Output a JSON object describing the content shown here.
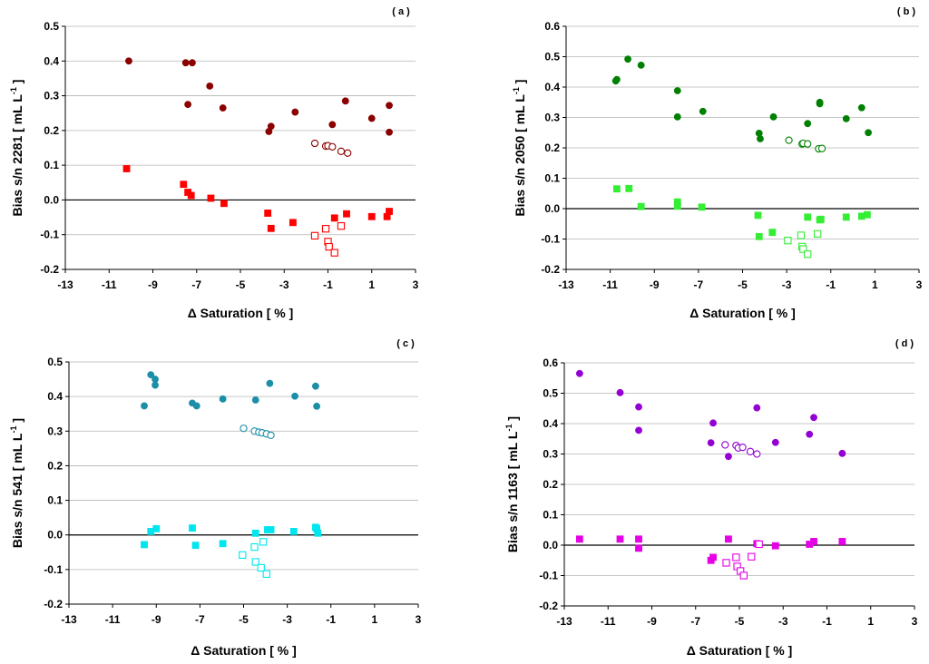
{
  "chart_data": [
    {
      "id": "a",
      "type": "scatter",
      "panel_label": "( a )",
      "xlabel": "Δ Saturation [ % ]",
      "ylabel_main": "Bias s/n 2281 [ mL L",
      "ylabel_sup": "-1",
      "ylabel_end": " ]",
      "xlim": [
        -13,
        3
      ],
      "ylim": [
        -0.2,
        0.5
      ],
      "xticks": [
        -13,
        -11,
        -9,
        -7,
        -5,
        -3,
        -1,
        1,
        3
      ],
      "yticks": [
        -0.2,
        -0.1,
        0.0,
        0.1,
        0.2,
        0.3,
        0.4,
        0.5
      ],
      "ytick_labels": [
        "-0.2",
        "-0.1",
        "0.0",
        "0.1",
        "0.2",
        "0.3",
        "0.4",
        "0.5"
      ],
      "zero_line": true,
      "series": [
        {
          "marker": "circle",
          "filled": true,
          "color": "#8B0000",
          "points": [
            [
              -10.1,
              0.4
            ],
            [
              -7.5,
              0.395
            ],
            [
              -7.2,
              0.395
            ],
            [
              -7.4,
              0.275
            ],
            [
              -6.4,
              0.328
            ],
            [
              -5.8,
              0.265
            ],
            [
              -3.6,
              0.212
            ],
            [
              -3.7,
              0.197
            ],
            [
              -2.5,
              0.253
            ],
            [
              -0.8,
              0.217
            ],
            [
              -0.2,
              0.285
            ],
            [
              1.0,
              0.235
            ],
            [
              1.8,
              0.272
            ],
            [
              1.8,
              0.195
            ]
          ]
        },
        {
          "marker": "circle",
          "filled": false,
          "color": "#8B0000",
          "points": [
            [
              -1.6,
              0.163
            ],
            [
              -1.1,
              0.155
            ],
            [
              -1.0,
              0.156
            ],
            [
              -0.8,
              0.153
            ],
            [
              -0.4,
              0.14
            ],
            [
              -0.1,
              0.135
            ]
          ]
        },
        {
          "marker": "square",
          "filled": true,
          "color": "#FF0000",
          "points": [
            [
              -10.2,
              0.09
            ],
            [
              -7.6,
              0.045
            ],
            [
              -7.4,
              0.022
            ],
            [
              -7.25,
              0.013
            ],
            [
              -6.35,
              0.005
            ],
            [
              -5.75,
              -0.01
            ],
            [
              -3.75,
              -0.038
            ],
            [
              -3.6,
              -0.082
            ],
            [
              -2.6,
              -0.065
            ],
            [
              -0.7,
              -0.052
            ],
            [
              -0.15,
              -0.04
            ],
            [
              1.0,
              -0.048
            ],
            [
              1.7,
              -0.048
            ],
            [
              1.8,
              -0.033
            ]
          ]
        },
        {
          "marker": "square",
          "filled": false,
          "color": "#FF0000",
          "points": [
            [
              -1.6,
              -0.103
            ],
            [
              -1.1,
              -0.083
            ],
            [
              -1.0,
              -0.12
            ],
            [
              -0.95,
              -0.135
            ],
            [
              -0.7,
              -0.152
            ],
            [
              -0.4,
              -0.075
            ]
          ]
        }
      ]
    },
    {
      "id": "b",
      "type": "scatter",
      "panel_label": "( b )",
      "xlabel": "Δ Saturation [ % ]",
      "ylabel_main": "Bias s/n 2050 [ mL L",
      "ylabel_sup": "-1",
      "ylabel_end": " ]",
      "xlim": [
        -13,
        3
      ],
      "ylim": [
        -0.2,
        0.6
      ],
      "xticks": [
        -13,
        -11,
        -9,
        -7,
        -5,
        -3,
        -1,
        1,
        3
      ],
      "yticks": [
        -0.2,
        -0.1,
        0.0,
        0.1,
        0.2,
        0.3,
        0.4,
        0.5,
        0.6
      ],
      "ytick_labels": [
        "-0.2",
        "-0.1",
        "0.0",
        "0.1",
        "0.2",
        "0.3",
        "0.4",
        "0.5",
        "0.6"
      ],
      "zero_line": true,
      "series": [
        {
          "marker": "circle",
          "filled": true,
          "color": "#008000",
          "points": [
            [
              -10.7,
              0.425
            ],
            [
              -10.75,
              0.42
            ],
            [
              -10.2,
              0.492
            ],
            [
              -9.6,
              0.472
            ],
            [
              -7.95,
              0.388
            ],
            [
              -7.95,
              0.302
            ],
            [
              -6.8,
              0.32
            ],
            [
              -4.25,
              0.248
            ],
            [
              -4.2,
              0.23
            ],
            [
              -3.6,
              0.302
            ],
            [
              -2.05,
              0.28
            ],
            [
              -1.5,
              0.35
            ],
            [
              -1.5,
              0.345
            ],
            [
              -0.3,
              0.296
            ],
            [
              0.4,
              0.332
            ],
            [
              0.7,
              0.25
            ]
          ]
        },
        {
          "marker": "circle",
          "filled": false,
          "color": "#008000",
          "points": [
            [
              -2.9,
              0.225
            ],
            [
              -2.3,
              0.213
            ],
            [
              -2.25,
              0.215
            ],
            [
              -2.05,
              0.213
            ],
            [
              -1.55,
              0.197
            ],
            [
              -1.4,
              0.198
            ]
          ]
        },
        {
          "marker": "square",
          "filled": true,
          "color": "#33EE33",
          "points": [
            [
              -10.7,
              0.065
            ],
            [
              -10.15,
              0.066
            ],
            [
              -9.6,
              0.007
            ],
            [
              -7.95,
              0.022
            ],
            [
              -7.95,
              0.008
            ],
            [
              -6.85,
              0.005
            ],
            [
              -4.3,
              -0.022
            ],
            [
              -4.25,
              -0.092
            ],
            [
              -3.65,
              -0.078
            ],
            [
              -2.05,
              -0.028
            ],
            [
              -1.5,
              -0.037
            ],
            [
              -1.45,
              -0.035
            ],
            [
              -0.3,
              -0.028
            ],
            [
              0.4,
              -0.025
            ],
            [
              0.65,
              -0.02
            ]
          ]
        },
        {
          "marker": "square",
          "filled": false,
          "color": "#33EE33",
          "points": [
            [
              -2.95,
              -0.105
            ],
            [
              -2.35,
              -0.088
            ],
            [
              -2.3,
              -0.125
            ],
            [
              -2.25,
              -0.133
            ],
            [
              -2.05,
              -0.15
            ],
            [
              -1.6,
              -0.083
            ]
          ]
        }
      ]
    },
    {
      "id": "c",
      "type": "scatter",
      "panel_label": "( c )",
      "xlabel": "Δ Saturation [ % ]",
      "ylabel_main": "Bias s/n 541 [ mL L",
      "ylabel_sup": "-1",
      "ylabel_end": " ]",
      "xlim": [
        -13,
        3
      ],
      "ylim": [
        -0.2,
        0.5
      ],
      "xticks": [
        -13,
        -11,
        -9,
        -7,
        -5,
        -3,
        -1,
        1,
        3
      ],
      "yticks": [
        -0.2,
        -0.1,
        0.0,
        0.1,
        0.2,
        0.3,
        0.4,
        0.5
      ],
      "ytick_labels": [
        "-0.2",
        "-0.1",
        "0.0",
        "0.1",
        "0.2",
        "0.3",
        "0.4",
        "0.5"
      ],
      "zero_line": true,
      "series": [
        {
          "marker": "circle",
          "filled": true,
          "color": "#1B8EA8",
          "points": [
            [
              -9.55,
              0.373
            ],
            [
              -9.25,
              0.463
            ],
            [
              -9.05,
              0.45
            ],
            [
              -9.05,
              0.433
            ],
            [
              -7.35,
              0.381
            ],
            [
              -7.15,
              0.373
            ],
            [
              -5.95,
              0.393
            ],
            [
              -4.45,
              0.39
            ],
            [
              -3.8,
              0.438
            ],
            [
              -2.65,
              0.401
            ],
            [
              -1.7,
              0.43
            ],
            [
              -1.65,
              0.372
            ]
          ]
        },
        {
          "marker": "circle",
          "filled": false,
          "color": "#1B8EA8",
          "points": [
            [
              -5.0,
              0.308
            ],
            [
              -4.5,
              0.3
            ],
            [
              -4.3,
              0.297
            ],
            [
              -4.15,
              0.295
            ],
            [
              -3.95,
              0.292
            ],
            [
              -3.75,
              0.288
            ]
          ]
        },
        {
          "marker": "square",
          "filled": true,
          "color": "#00E5EE",
          "points": [
            [
              -9.55,
              -0.028
            ],
            [
              -9.25,
              0.01
            ],
            [
              -9.0,
              0.018
            ],
            [
              -7.35,
              0.02
            ],
            [
              -7.2,
              -0.03
            ],
            [
              -5.95,
              -0.025
            ],
            [
              -4.45,
              0.005
            ],
            [
              -3.9,
              0.015
            ],
            [
              -3.75,
              0.015
            ],
            [
              -2.7,
              0.01
            ],
            [
              -1.7,
              0.022
            ],
            [
              -1.65,
              0.018
            ],
            [
              -1.6,
              0.005
            ]
          ]
        },
        {
          "marker": "square",
          "filled": false,
          "color": "#00E5EE",
          "points": [
            [
              -5.05,
              -0.058
            ],
            [
              -4.5,
              -0.035
            ],
            [
              -4.45,
              -0.078
            ],
            [
              -4.2,
              -0.095
            ],
            [
              -4.1,
              -0.02
            ],
            [
              -3.95,
              -0.113
            ]
          ]
        }
      ]
    },
    {
      "id": "d",
      "type": "scatter",
      "panel_label": "( d )",
      "xlabel": "Δ Saturation [ % ]",
      "ylabel_main": "Bias s/n 1163 [ mL L",
      "ylabel_sup": "-1",
      "ylabel_end": " ]",
      "xlim": [
        -13,
        3
      ],
      "ylim": [
        -0.2,
        0.6
      ],
      "xticks": [
        -13,
        -11,
        -9,
        -7,
        -5,
        -3,
        -1,
        1,
        3
      ],
      "yticks": [
        -0.2,
        -0.1,
        0.0,
        0.1,
        0.2,
        0.3,
        0.4,
        0.5,
        0.6
      ],
      "ytick_labels": [
        "-0.2",
        "-0.1",
        "0.0",
        "0.1",
        "0.2",
        "0.3",
        "0.4",
        "0.5",
        "0.6"
      ],
      "zero_line": true,
      "series": [
        {
          "marker": "circle",
          "filled": true,
          "color": "#9400D3",
          "points": [
            [
              -12.3,
              0.565
            ],
            [
              -10.45,
              0.502
            ],
            [
              -9.6,
              0.455
            ],
            [
              -9.6,
              0.378
            ],
            [
              -6.3,
              0.337
            ],
            [
              -6.2,
              0.402
            ],
            [
              -5.5,
              0.292
            ],
            [
              -4.2,
              0.452
            ],
            [
              -3.35,
              0.338
            ],
            [
              -1.8,
              0.365
            ],
            [
              -1.6,
              0.42
            ],
            [
              -0.3,
              0.302
            ]
          ]
        },
        {
          "marker": "circle",
          "filled": false,
          "color": "#9400D3",
          "points": [
            [
              -5.65,
              0.33
            ],
            [
              -5.15,
              0.328
            ],
            [
              -5.05,
              0.32
            ],
            [
              -4.85,
              0.322
            ],
            [
              -4.5,
              0.308
            ],
            [
              -4.2,
              0.3
            ]
          ]
        },
        {
          "marker": "square",
          "filled": true,
          "color": "#E600E6",
          "points": [
            [
              -12.3,
              0.02
            ],
            [
              -10.45,
              0.02
            ],
            [
              -9.6,
              0.02
            ],
            [
              -9.6,
              -0.01
            ],
            [
              -6.3,
              -0.05
            ],
            [
              -6.2,
              -0.04
            ],
            [
              -5.5,
              0.02
            ],
            [
              -4.2,
              0.005
            ],
            [
              -3.35,
              -0.002
            ],
            [
              -1.8,
              0.003
            ],
            [
              -1.6,
              0.012
            ],
            [
              -0.3,
              0.012
            ]
          ]
        },
        {
          "marker": "square",
          "filled": false,
          "color": "#E600E6",
          "points": [
            [
              -5.6,
              -0.058
            ],
            [
              -5.15,
              -0.04
            ],
            [
              -5.1,
              -0.07
            ],
            [
              -4.95,
              -0.085
            ],
            [
              -4.8,
              -0.1
            ],
            [
              -4.45,
              -0.038
            ],
            [
              -4.1,
              0.003
            ]
          ]
        }
      ]
    }
  ]
}
